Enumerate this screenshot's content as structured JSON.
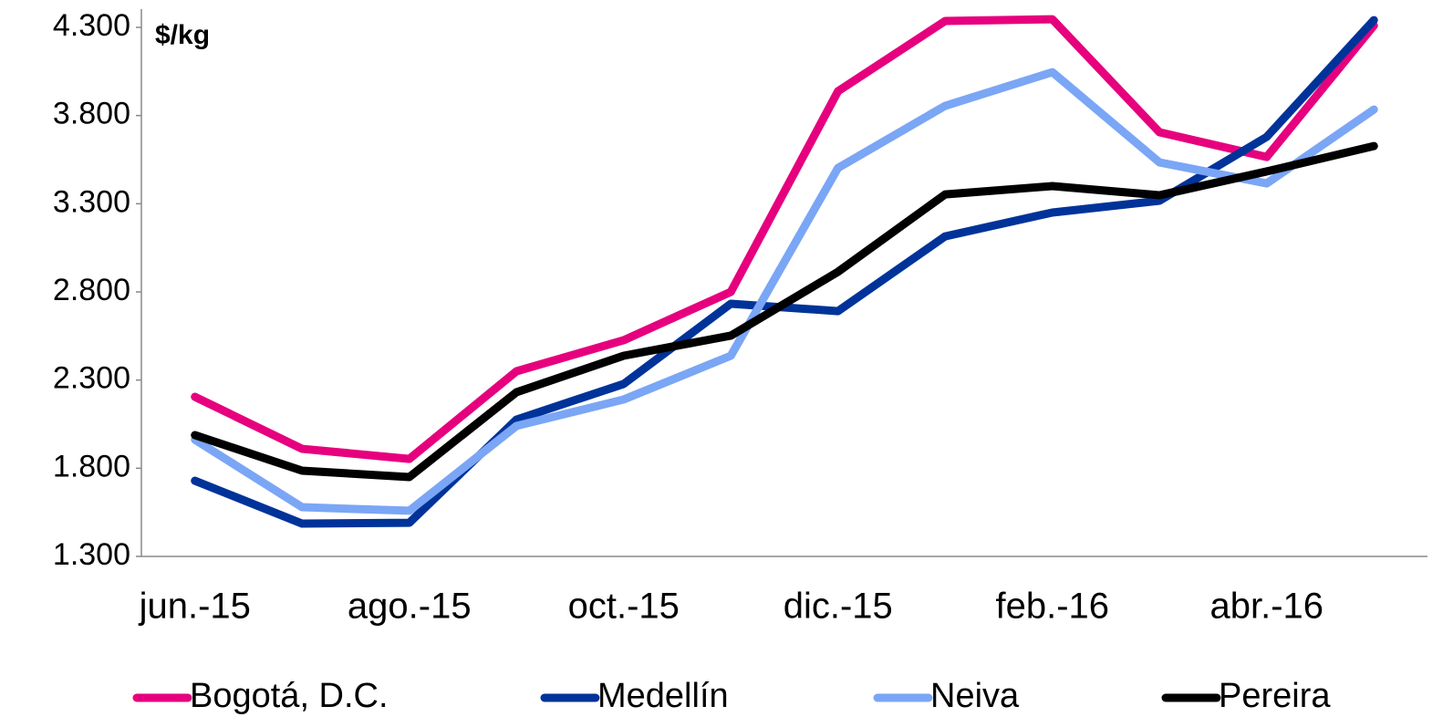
{
  "chart_data": {
    "type": "line",
    "unit_label": "$/kg",
    "categories": [
      "jun.-15",
      null,
      "ago.-15",
      null,
      "oct.-15",
      null,
      "dic.-15",
      null,
      "feb.-16",
      null,
      "abr.-16",
      null
    ],
    "series": [
      {
        "name": "Bogotá, D.C.",
        "color": "#e6007e",
        "values": [
          2205,
          1910,
          1853,
          2350,
          2526,
          2800,
          3938,
          4336,
          4346,
          3705,
          3565,
          4310
        ]
      },
      {
        "name": "Medellín",
        "color": "#003399",
        "values": [
          1729,
          1486,
          1491,
          2076,
          2278,
          2733,
          2691,
          3115,
          3250,
          3317,
          3679,
          4341
        ]
      },
      {
        "name": "Neiva",
        "color": "#7aa6f5",
        "values": [
          1962,
          1579,
          1559,
          2040,
          2190,
          2438,
          3503,
          3855,
          4046,
          3534,
          3415,
          3834
        ]
      },
      {
        "name": "Pereira",
        "color": "#000000",
        "values": [
          1988,
          1786,
          1750,
          2231,
          2438,
          2552,
          2914,
          3353,
          3400,
          3348,
          3483,
          3627
        ]
      }
    ],
    "ylim": [
      1300,
      4300
    ],
    "yticks": [
      {
        "value": 1300,
        "label": "1.300"
      },
      {
        "value": 1800,
        "label": "1.800"
      },
      {
        "value": 2300,
        "label": "2.300"
      },
      {
        "value": 2800,
        "label": "2.800"
      },
      {
        "value": 3300,
        "label": "3.300"
      },
      {
        "value": 3800,
        "label": "3.800"
      },
      {
        "value": 4300,
        "label": "4.300"
      }
    ],
    "legend": "bottom"
  }
}
